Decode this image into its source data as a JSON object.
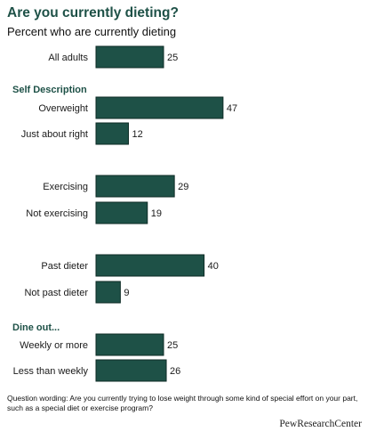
{
  "title": "Are you currently dieting?",
  "subtitle": "Percent who are currently dieting",
  "chart_data": {
    "type": "bar",
    "orientation": "horizontal",
    "title": "Are you currently dieting?",
    "subtitle": "Percent who are currently dieting",
    "xlabel": "",
    "ylabel": "",
    "grid": false,
    "bar_color": "#1e5147",
    "heading_color": "#1e5147",
    "groups": [
      {
        "heading": "",
        "rows": [
          {
            "label": "All adults",
            "value": 25
          }
        ]
      },
      {
        "heading": "Self Description",
        "rows": [
          {
            "label": "Overweight",
            "value": 47
          },
          {
            "label": "Just about right",
            "value": 12
          }
        ]
      },
      {
        "heading": "",
        "rows": [
          {
            "label": "Exercising",
            "value": 29
          },
          {
            "label": "Not exercising",
            "value": 19
          }
        ]
      },
      {
        "heading": "",
        "rows": [
          {
            "label": "Past dieter",
            "value": 40
          },
          {
            "label": "Not past dieter",
            "value": 9
          }
        ]
      },
      {
        "heading": "Dine out...",
        "rows": [
          {
            "label": "Weekly or more",
            "value": 25
          },
          {
            "label": "Less than weekly",
            "value": 26
          }
        ]
      }
    ]
  },
  "footnote": "Question wording: Are you currently trying to lose weight through some kind of special effort on your part, such as a special diet or exercise program?",
  "logo": "PewResearchCenter"
}
